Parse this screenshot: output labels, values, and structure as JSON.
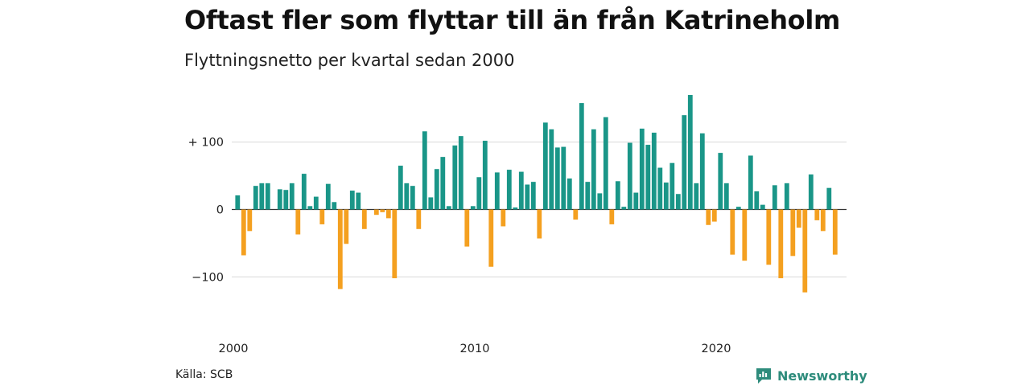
{
  "header": {
    "title": "Oftast fler som flyttar till än från Katrineholm",
    "subtitle": "Flyttningsnetto per kvartal sedan 2000"
  },
  "footer": {
    "source": "Källa: SCB",
    "brand": "Newsworthy"
  },
  "colors": {
    "positive": "#1a9688",
    "negative": "#f4a020",
    "grid": "#d9d9d9",
    "brand": "#2e8c7c"
  },
  "chart_data": {
    "type": "bar",
    "title": "Oftast fler som flyttar till än från Katrineholm",
    "subtitle": "Flyttningsnetto per kvartal sedan 2000",
    "xlabel": "",
    "ylabel": "",
    "x_start": "2000 Q1",
    "frequency": "quarterly",
    "x_ticks": [
      "2000",
      "2010",
      "2020"
    ],
    "y_ticks": [
      {
        "value": 100,
        "label": "+ 100"
      },
      {
        "value": 0,
        "label": "0"
      },
      {
        "value": -100,
        "label": "−100"
      }
    ],
    "ylim": [
      -160,
      165
    ],
    "grid": true,
    "values": [
      21,
      -68,
      -32,
      35,
      39,
      39,
      0,
      30,
      29,
      39,
      -37,
      53,
      5,
      19,
      -22,
      38,
      11,
      -118,
      -51,
      28,
      25,
      -29,
      0,
      -8,
      -4,
      -13,
      -102,
      65,
      39,
      35,
      -29,
      116,
      18,
      60,
      78,
      5,
      95,
      109,
      -55,
      5,
      48,
      102,
      -85,
      55,
      -25,
      59,
      3,
      56,
      37,
      41,
      -43,
      129,
      119,
      92,
      93,
      46,
      -15,
      158,
      41,
      119,
      24,
      137,
      -22,
      42,
      4,
      99,
      25,
      120,
      96,
      114,
      62,
      40,
      69,
      23,
      140,
      170,
      39,
      113,
      -23,
      -18,
      84,
      39,
      -67,
      4,
      -76,
      80,
      27,
      7,
      -82,
      36,
      -102,
      39,
      -69,
      -27,
      -123,
      52,
      -16,
      -32,
      32,
      -67
    ]
  }
}
